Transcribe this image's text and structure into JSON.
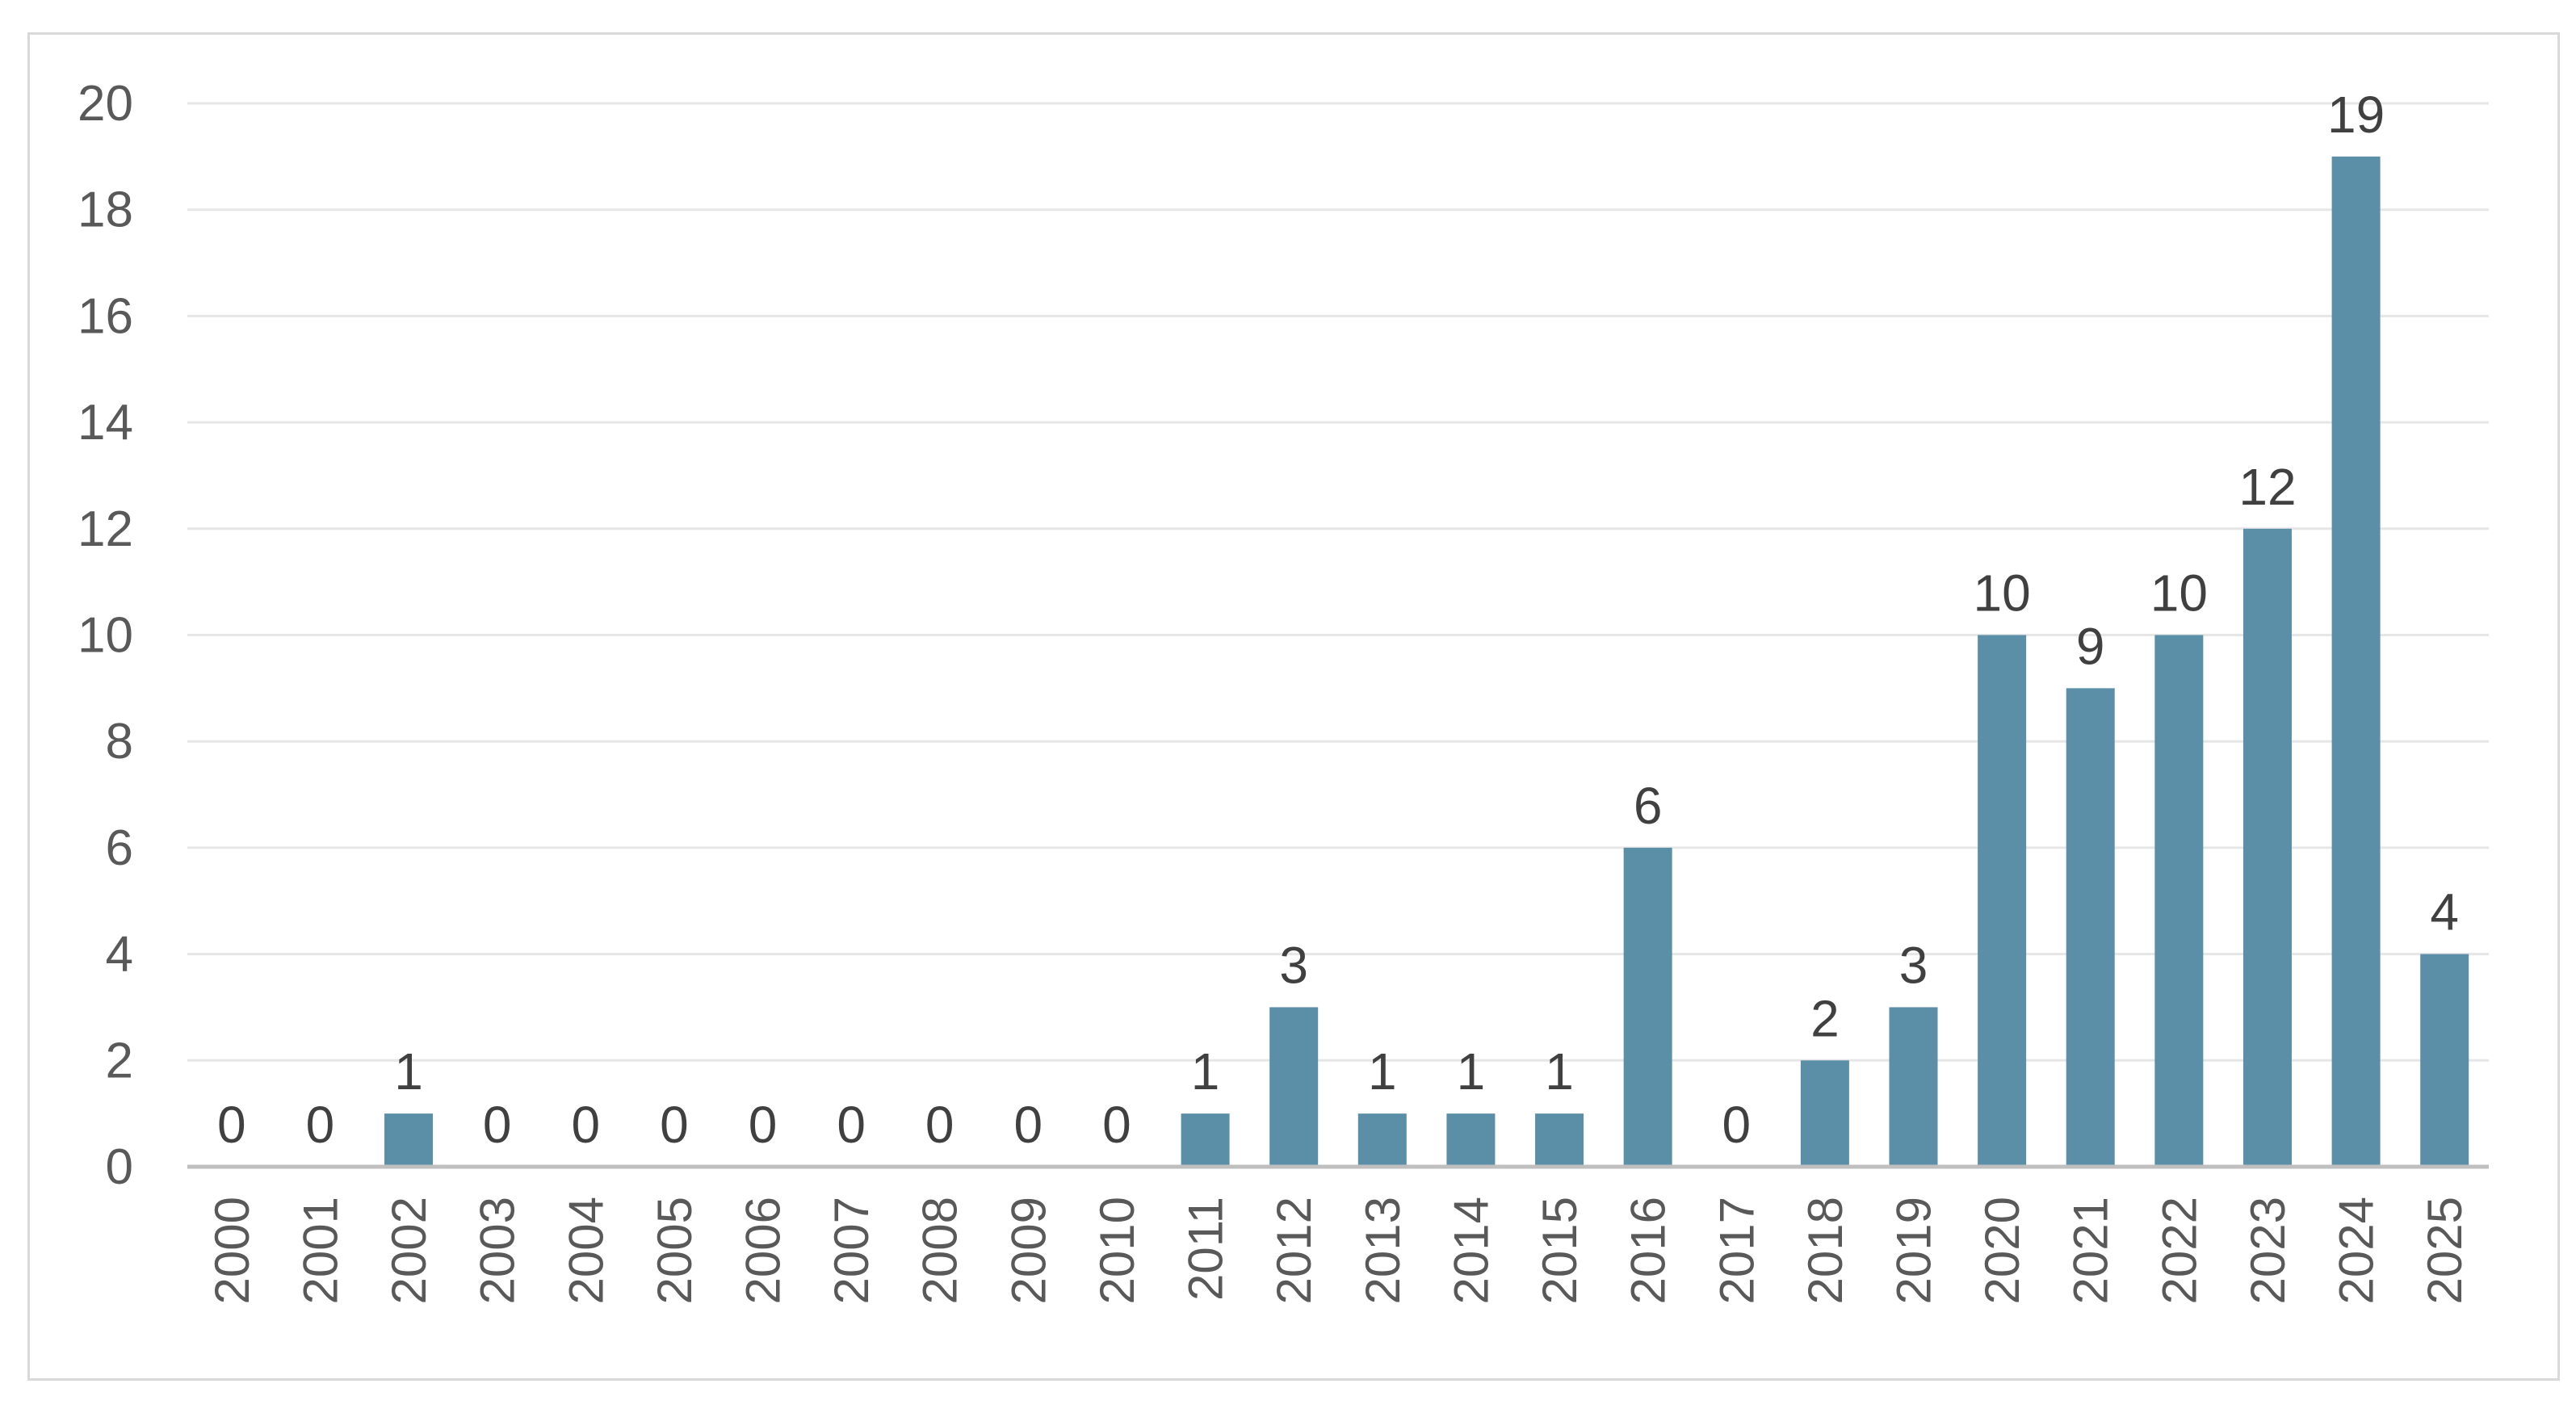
{
  "chart_data": {
    "type": "bar",
    "categories": [
      "2000",
      "2001",
      "2002",
      "2003",
      "2004",
      "2005",
      "2006",
      "2007",
      "2008",
      "2009",
      "2010",
      "2011",
      "2012",
      "2013",
      "2014",
      "2015",
      "2016",
      "2017",
      "2018",
      "2019",
      "2020",
      "2021",
      "2022",
      "2023",
      "2024",
      "2025"
    ],
    "values": [
      0,
      0,
      1,
      0,
      0,
      0,
      0,
      0,
      0,
      0,
      0,
      1,
      3,
      1,
      1,
      1,
      6,
      0,
      2,
      3,
      10,
      9,
      10,
      12,
      19,
      4
    ],
    "title": "",
    "xlabel": "",
    "ylabel": "",
    "ylim": [
      0,
      20
    ],
    "yticks": [
      "0",
      "2",
      "4",
      "6",
      "8",
      "10",
      "12",
      "14",
      "16",
      "18",
      "20"
    ],
    "grid": "horizontal",
    "data_labels": true,
    "bar_color": "#5b8fa8",
    "grid_color": "#e6e6e6",
    "axis_color": "#bfbfbf"
  }
}
